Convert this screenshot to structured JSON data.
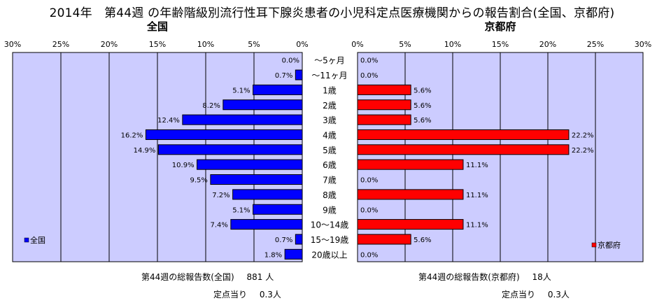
{
  "title": "2014年　第44週 の年齢階級別流行性耳下腺炎患者の小児科定点医療機関からの報告割合(全国、京都府)",
  "colors": {
    "national": "#0000ff",
    "kyoto": "#ff0000",
    "plot_bg": "#ccccff",
    "grid": "#000000"
  },
  "chart_data": [
    {
      "type": "bar",
      "orientation": "horizontal",
      "title": "全国",
      "direction": "right-to-left",
      "xlim": [
        0,
        30
      ],
      "ticks": [
        "30%",
        "25%",
        "20%",
        "15%",
        "10%",
        "5%",
        "0%"
      ],
      "tick_values": [
        30,
        25,
        20,
        15,
        10,
        5,
        0
      ],
      "legend": "全国",
      "legend_position": "bottom-left",
      "categories": [
        "～5ヶ月",
        "～11ヶ月",
        "1歳",
        "2歳",
        "3歳",
        "4歳",
        "5歳",
        "6歳",
        "7歳",
        "8歳",
        "9歳",
        "10～14歳",
        "15～19歳",
        "20歳以上"
      ],
      "values": [
        0.0,
        0.7,
        5.1,
        8.2,
        12.4,
        16.2,
        14.9,
        10.9,
        9.5,
        7.2,
        5.1,
        7.4,
        0.7,
        1.8
      ],
      "labels": [
        "0.0%",
        "0.7%",
        "5.1%",
        "8.2%",
        "12.4%",
        "16.2%",
        "14.9%",
        "10.9%",
        "9.5%",
        "7.2%",
        "5.1%",
        "7.4%",
        "0.7%",
        "1.8%"
      ]
    },
    {
      "type": "bar",
      "orientation": "horizontal",
      "title": "京都府",
      "direction": "left-to-right",
      "xlim": [
        0,
        30
      ],
      "ticks": [
        "0%",
        "5%",
        "10%",
        "15%",
        "20%",
        "25%",
        "30%"
      ],
      "tick_values": [
        0,
        5,
        10,
        15,
        20,
        25,
        30
      ],
      "legend": "京都府",
      "legend_position": "bottom-right",
      "categories": [
        "～5ヶ月",
        "～11ヶ月",
        "1歳",
        "2歳",
        "3歳",
        "4歳",
        "5歳",
        "6歳",
        "7歳",
        "8歳",
        "9歳",
        "10～14歳",
        "15～19歳",
        "20歳以上"
      ],
      "values": [
        0.0,
        0.0,
        5.6,
        5.6,
        5.6,
        22.2,
        22.2,
        11.1,
        0.0,
        11.1,
        0.0,
        11.1,
        5.6,
        0.0
      ],
      "labels": [
        "0.0%",
        "0.0%",
        "5.6%",
        "5.6%",
        "5.6%",
        "22.2%",
        "22.2%",
        "11.1%",
        "0.0%",
        "11.1%",
        "0.0%",
        "11.1%",
        "5.6%",
        "0.0%"
      ]
    }
  ],
  "footer": {
    "national": {
      "total_label": "第44週の総報告数(全国)",
      "total_value": "881 人",
      "per_label": "定点当り",
      "per_value": "0.3人"
    },
    "kyoto": {
      "total_label": "第44週の総報告数(京都府)",
      "total_value": "18人",
      "per_label": "定点当り",
      "per_value": "0.3人"
    }
  }
}
